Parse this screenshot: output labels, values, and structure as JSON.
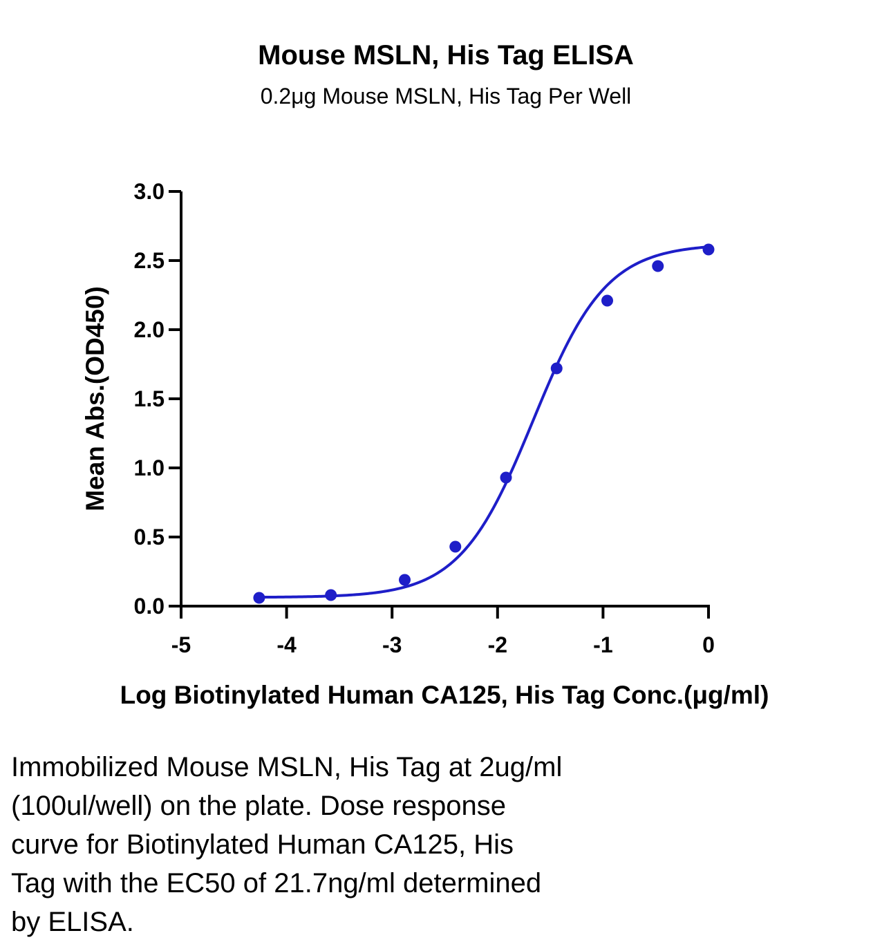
{
  "chart_data": {
    "type": "scatter",
    "title": "Mouse MSLN, His Tag ELISA",
    "subtitle": "0.2μg Mouse MSLN, His Tag Per Well",
    "xlabel": "Log Biotinylated Human CA125, His Tag Conc.(μg/ml)",
    "ylabel": "Mean Abs.(OD450)",
    "xlim": [
      -5,
      0
    ],
    "ylim": [
      0,
      3.0
    ],
    "xticks": [
      "-5",
      "-4",
      "-3",
      "-2",
      "-1",
      "0"
    ],
    "yticks": [
      "0.0",
      "0.5",
      "1.0",
      "1.5",
      "2.0",
      "2.5",
      "3.0"
    ],
    "grid": false,
    "series": [
      {
        "x": [
          -4.26,
          -3.58,
          -2.88,
          -2.4,
          -1.92,
          -1.44,
          -0.96,
          -0.48,
          0.0
        ],
        "y": [
          0.06,
          0.08,
          0.19,
          0.43,
          0.93,
          1.72,
          2.21,
          2.46,
          2.58
        ],
        "color": "#1e1ec8",
        "fit": "4PL sigmoidal curve"
      }
    ]
  },
  "caption": {
    "lines": [
      "Immobilized Mouse MSLN, His Tag at 2ug/ml",
      "(100ul/well) on the plate. Dose response",
      "curve for Biotinylated Human CA125, His",
      "Tag with the EC50 of 21.7ng/ml determined",
      "by ELISA."
    ]
  }
}
